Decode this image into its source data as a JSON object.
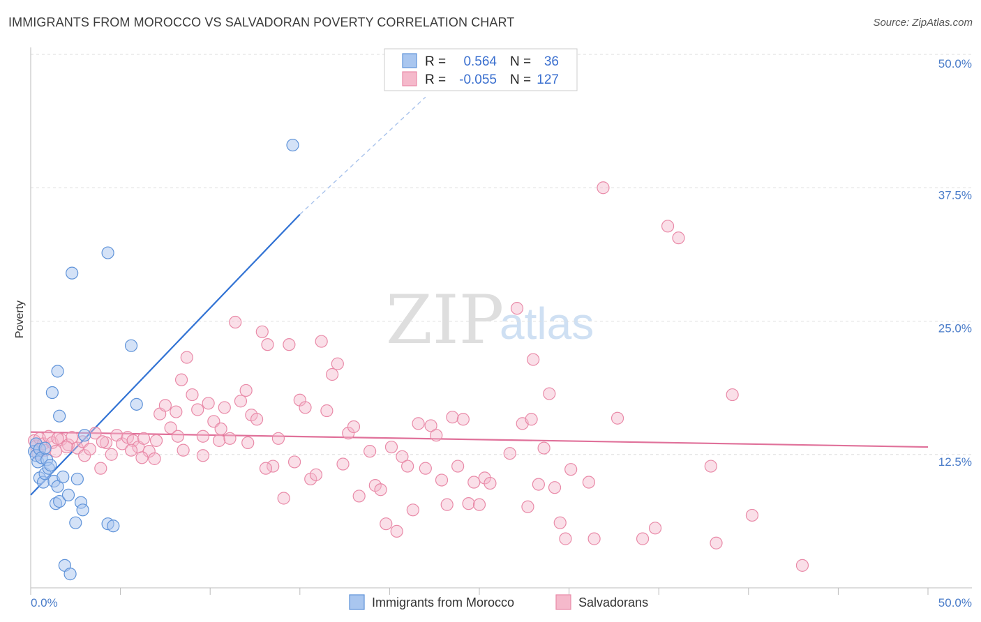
{
  "title": "IMMIGRANTS FROM MOROCCO VS SALVADORAN POVERTY CORRELATION CHART",
  "source": "Source: ZipAtlas.com",
  "watermark": {
    "zip": "ZIP",
    "atlas": "atlas"
  },
  "colors": {
    "blue_fill": "#a9c6ef",
    "blue_stroke": "#5f93d9",
    "blue_line": "#3273d4",
    "pink_fill": "#f5b9cb",
    "pink_stroke": "#e98aa8",
    "pink_line": "#e0719a",
    "grid": "#dddddd",
    "axis_text": "#4a7cc9"
  },
  "stats": {
    "r_label": "R =",
    "n_label": "N =",
    "blue": {
      "r": "0.564",
      "n": "36"
    },
    "pink": {
      "r": "-0.055",
      "n": "127"
    }
  },
  "chart_data": {
    "type": "scatter",
    "title": "IMMIGRANTS FROM MOROCCO VS SALVADORAN POVERTY CORRELATION CHART",
    "xlabel": "",
    "ylabel": "Poverty",
    "xlim": [
      0,
      50
    ],
    "ylim": [
      0,
      50
    ],
    "x_tick_labels": [
      "0.0%",
      "50.0%"
    ],
    "y_ticks": [
      12.5,
      25.0,
      37.5,
      50.0
    ],
    "y_tick_labels": [
      "12.5%",
      "25.0%",
      "37.5%",
      "50.0%"
    ],
    "legend": [
      "Immigrants from Morocco",
      "Salvadorans"
    ],
    "series": [
      {
        "name": "Immigrants from Morocco",
        "trend": {
          "x0": 0,
          "y0": 8.7,
          "x1": 15,
          "y1": 35.0,
          "dash_to_x": 22,
          "dash_to_y": 46.0
        },
        "points": [
          [
            0.2,
            12.8
          ],
          [
            0.3,
            13.5
          ],
          [
            0.3,
            12.4
          ],
          [
            0.4,
            11.8
          ],
          [
            0.5,
            13.0
          ],
          [
            0.5,
            10.3
          ],
          [
            0.6,
            12.2
          ],
          [
            0.7,
            9.9
          ],
          [
            0.8,
            13.1
          ],
          [
            0.8,
            10.7
          ],
          [
            0.9,
            12.0
          ],
          [
            1.0,
            11.2
          ],
          [
            1.1,
            11.5
          ],
          [
            1.3,
            10.0
          ],
          [
            1.4,
            7.9
          ],
          [
            1.5,
            9.5
          ],
          [
            1.6,
            8.1
          ],
          [
            1.8,
            10.4
          ],
          [
            1.9,
            2.1
          ],
          [
            2.1,
            8.7
          ],
          [
            2.2,
            1.3
          ],
          [
            2.5,
            6.1
          ],
          [
            2.6,
            10.2
          ],
          [
            2.8,
            8.0
          ],
          [
            2.9,
            7.3
          ],
          [
            3.0,
            14.3
          ],
          [
            4.3,
            6.0
          ],
          [
            4.6,
            5.8
          ],
          [
            1.5,
            20.3
          ],
          [
            1.6,
            16.1
          ],
          [
            1.2,
            18.3
          ],
          [
            2.3,
            29.5
          ],
          [
            4.3,
            31.4
          ],
          [
            5.6,
            22.7
          ],
          [
            5.9,
            17.2
          ],
          [
            14.6,
            41.5
          ]
        ]
      },
      {
        "name": "Salvadorans",
        "trend": {
          "x0": 0,
          "y0": 14.6,
          "x1": 50,
          "y1": 13.2
        },
        "points": [
          [
            0.2,
            13.8
          ],
          [
            0.3,
            13.3
          ],
          [
            0.4,
            12.6
          ],
          [
            0.5,
            14.0
          ],
          [
            0.7,
            13.5
          ],
          [
            0.8,
            12.9
          ],
          [
            1.0,
            14.2
          ],
          [
            1.2,
            13.6
          ],
          [
            1.4,
            12.8
          ],
          [
            1.7,
            13.9
          ],
          [
            2.1,
            13.4
          ],
          [
            2.3,
            14.1
          ],
          [
            2.6,
            13.1
          ],
          [
            2.9,
            13.7
          ],
          [
            3.0,
            12.4
          ],
          [
            3.3,
            13.0
          ],
          [
            3.6,
            14.5
          ],
          [
            3.9,
            11.2
          ],
          [
            4.2,
            13.6
          ],
          [
            4.5,
            12.5
          ],
          [
            4.8,
            14.3
          ],
          [
            5.1,
            13.5
          ],
          [
            5.4,
            14.1
          ],
          [
            5.7,
            13.8
          ],
          [
            6.0,
            13.2
          ],
          [
            6.3,
            14.0
          ],
          [
            6.6,
            12.8
          ],
          [
            6.9,
            12.1
          ],
          [
            7.2,
            16.3
          ],
          [
            7.5,
            17.1
          ],
          [
            7.8,
            15.0
          ],
          [
            8.1,
            16.5
          ],
          [
            8.4,
            19.5
          ],
          [
            8.7,
            21.6
          ],
          [
            8.2,
            14.2
          ],
          [
            8.5,
            12.9
          ],
          [
            9.0,
            18.1
          ],
          [
            9.3,
            16.7
          ],
          [
            9.6,
            14.2
          ],
          [
            9.9,
            17.3
          ],
          [
            10.2,
            15.6
          ],
          [
            10.5,
            13.8
          ],
          [
            10.8,
            16.9
          ],
          [
            11.1,
            14.0
          ],
          [
            11.4,
            24.9
          ],
          [
            11.7,
            17.5
          ],
          [
            12.0,
            18.5
          ],
          [
            12.3,
            16.2
          ],
          [
            12.6,
            15.8
          ],
          [
            12.9,
            24.0
          ],
          [
            13.2,
            22.8
          ],
          [
            13.5,
            11.4
          ],
          [
            13.8,
            14.0
          ],
          [
            14.1,
            8.4
          ],
          [
            14.4,
            22.8
          ],
          [
            14.7,
            11.8
          ],
          [
            15.0,
            17.6
          ],
          [
            15.3,
            16.9
          ],
          [
            15.6,
            10.2
          ],
          [
            15.9,
            10.6
          ],
          [
            16.2,
            23.1
          ],
          [
            16.5,
            16.6
          ],
          [
            16.8,
            20.0
          ],
          [
            17.1,
            21.0
          ],
          [
            17.4,
            11.6
          ],
          [
            17.7,
            14.5
          ],
          [
            18.0,
            15.1
          ],
          [
            18.3,
            8.6
          ],
          [
            18.9,
            12.8
          ],
          [
            19.2,
            9.6
          ],
          [
            19.5,
            9.2
          ],
          [
            19.8,
            6.0
          ],
          [
            20.1,
            13.2
          ],
          [
            20.4,
            5.3
          ],
          [
            20.7,
            12.3
          ],
          [
            21.0,
            11.4
          ],
          [
            21.3,
            7.3
          ],
          [
            21.6,
            15.4
          ],
          [
            22.0,
            11.2
          ],
          [
            22.3,
            15.2
          ],
          [
            22.6,
            14.3
          ],
          [
            22.9,
            10.1
          ],
          [
            23.2,
            7.8
          ],
          [
            23.5,
            16.0
          ],
          [
            23.8,
            11.4
          ],
          [
            24.1,
            15.8
          ],
          [
            24.4,
            7.9
          ],
          [
            24.7,
            9.9
          ],
          [
            25.0,
            7.8
          ],
          [
            25.3,
            10.3
          ],
          [
            25.6,
            9.8
          ],
          [
            26.7,
            12.6
          ],
          [
            27.1,
            26.2
          ],
          [
            27.4,
            15.4
          ],
          [
            27.7,
            7.6
          ],
          [
            27.9,
            15.8
          ],
          [
            28.0,
            21.4
          ],
          [
            28.3,
            9.7
          ],
          [
            28.6,
            13.1
          ],
          [
            28.9,
            18.2
          ],
          [
            29.2,
            9.4
          ],
          [
            29.5,
            6.1
          ],
          [
            29.8,
            4.6
          ],
          [
            30.1,
            11.1
          ],
          [
            31.1,
            9.9
          ],
          [
            31.4,
            4.6
          ],
          [
            31.9,
            37.5
          ],
          [
            32.7,
            15.9
          ],
          [
            34.1,
            4.6
          ],
          [
            34.8,
            5.6
          ],
          [
            35.5,
            33.9
          ],
          [
            36.1,
            32.8
          ],
          [
            37.9,
            11.4
          ],
          [
            38.2,
            4.2
          ],
          [
            39.1,
            18.1
          ],
          [
            40.2,
            6.8
          ],
          [
            43.0,
            2.1
          ],
          [
            1.5,
            14.0
          ],
          [
            2.0,
            13.2
          ],
          [
            4.0,
            13.7
          ],
          [
            5.6,
            12.9
          ],
          [
            6.2,
            12.2
          ],
          [
            7.0,
            13.8
          ],
          [
            9.6,
            12.4
          ],
          [
            10.6,
            14.9
          ],
          [
            12.1,
            13.6
          ],
          [
            13.1,
            11.2
          ]
        ]
      }
    ]
  }
}
